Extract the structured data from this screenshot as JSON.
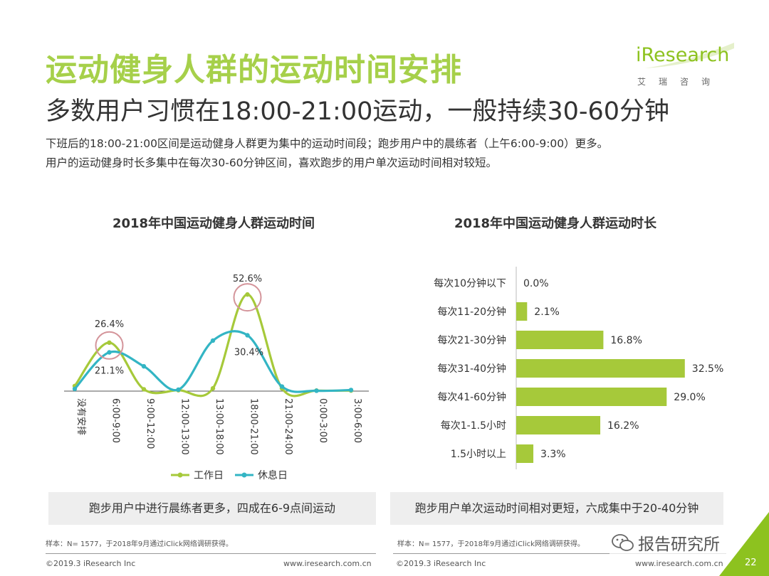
{
  "header": {
    "title": "运动健身人群的运动时间安排",
    "subtitle": "多数用户习惯在18:00-21:00运动，一般持续30-60分钟",
    "desc_line1": "下班后的18:00-21:00区间是运动健身人群更为集中的运动时间段；跑步用户中的晨练者（上午6:00-9:00）更多。",
    "desc_line2": "用户的运动健身时长多集中在每次30-60分钟区间，喜欢跑步的用户单次运动时间相对较短。"
  },
  "logo": {
    "word": "iResearch",
    "cn": "艾瑞咨询"
  },
  "colors": {
    "green": "#a6c93a",
    "teal": "#33b5c4",
    "circle": "#d4949a",
    "title_green": "#a6d04a"
  },
  "chart_data": [
    {
      "type": "line",
      "title": "2018年中国运动健身人群运动时间",
      "categories": [
        "没有安排",
        "6:00-9:00",
        "9:00-12:00",
        "12:00-13:00",
        "13:00-18:00",
        "18:00-21:00",
        "21:00-24:00",
        "0:00-3:00",
        "3:00-6:00"
      ],
      "series": [
        {
          "name": "工作日",
          "color": "#a6c93a",
          "values": [
            2.8,
            26.4,
            1.0,
            0.5,
            1.5,
            52.6,
            1.5,
            0.3,
            0.3
          ]
        },
        {
          "name": "休息日",
          "color": "#33b5c4",
          "values": [
            1.2,
            21.1,
            13.5,
            0.8,
            27.5,
            30.4,
            2.5,
            0.2,
            0.6
          ]
        }
      ],
      "data_labels": [
        "26.4%",
        "21.1%",
        "52.6%",
        "30.4%"
      ],
      "highlighted": [
        "6:00-9:00",
        "18:00-21:00"
      ],
      "ylim": [
        0,
        60
      ],
      "grid": false,
      "legend": "bottom"
    },
    {
      "type": "bar",
      "orientation": "horizontal",
      "title": "2018年中国运动健身人群运动时长",
      "categories": [
        "每次10分钟以下",
        "每次11-20分钟",
        "每次21-30分钟",
        "每次31-40分钟",
        "每次41-60分钟",
        "每次1-1.5小时",
        "1.5小时以上"
      ],
      "values": [
        0.0,
        2.1,
        16.8,
        32.5,
        29.0,
        16.2,
        3.3
      ],
      "labels": [
        "0.0%",
        "2.1%",
        "16.8%",
        "32.5%",
        "29.0%",
        "16.2%",
        "3.3%"
      ],
      "color": "#a6c93a",
      "xlim": [
        0,
        35
      ]
    }
  ],
  "callouts": {
    "left": "跑步用户中进行晨练者更多，四成在6-9点间运动",
    "right": "跑步用户单次运动时间相对更短，六成集中于20-40分钟"
  },
  "notes": {
    "left": "样本：N= 1577，于2018年9月通过iClick网络调研获得。",
    "right": "样本：N= 1577，于2018年9月通过iClick网络调研获得。"
  },
  "footer": {
    "copyright_left": "©2019.3  iResearch Inc",
    "url_left": "www.iresearch.com.cn",
    "copyright_right": "©2019.3  iResearch Inc",
    "url_right": "www.iresearch.com.cn",
    "watermark": "报告研究所",
    "page": "22"
  }
}
